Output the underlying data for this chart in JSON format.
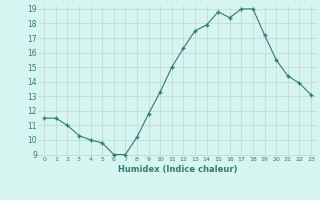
{
  "x": [
    0,
    1,
    2,
    3,
    4,
    5,
    6,
    7,
    8,
    9,
    10,
    11,
    12,
    13,
    14,
    15,
    16,
    17,
    18,
    19,
    20,
    21,
    22,
    23
  ],
  "y": [
    11.5,
    11.5,
    11.0,
    10.3,
    10.0,
    9.8,
    9.0,
    9.0,
    10.2,
    11.8,
    13.3,
    15.0,
    16.3,
    17.5,
    17.9,
    18.8,
    18.4,
    19.0,
    19.0,
    17.2,
    15.5,
    14.4,
    13.9,
    13.1
  ],
  "xlabel": "Humidex (Indice chaleur)",
  "ylim": [
    9,
    19
  ],
  "xlim": [
    -0.5,
    23.5
  ],
  "yticks": [
    9,
    10,
    11,
    12,
    13,
    14,
    15,
    16,
    17,
    18,
    19
  ],
  "xticks": [
    0,
    1,
    2,
    3,
    4,
    5,
    6,
    7,
    8,
    9,
    10,
    11,
    12,
    13,
    14,
    15,
    16,
    17,
    18,
    19,
    20,
    21,
    22,
    23
  ],
  "xtick_labels": [
    "0",
    "1",
    "2",
    "3",
    "4",
    "5",
    "6",
    "7",
    "8",
    "9",
    "10",
    "11",
    "12",
    "13",
    "14",
    "15",
    "16",
    "17",
    "18",
    "19",
    "20",
    "21",
    "22",
    "23"
  ],
  "line_color": "#2e7d6e",
  "marker": "+",
  "bg_color": "#d6f5f0",
  "grid_color": "#b8d8d0",
  "xlabel_color": "#2e7d6e",
  "tick_color": "#2e7d6e"
}
